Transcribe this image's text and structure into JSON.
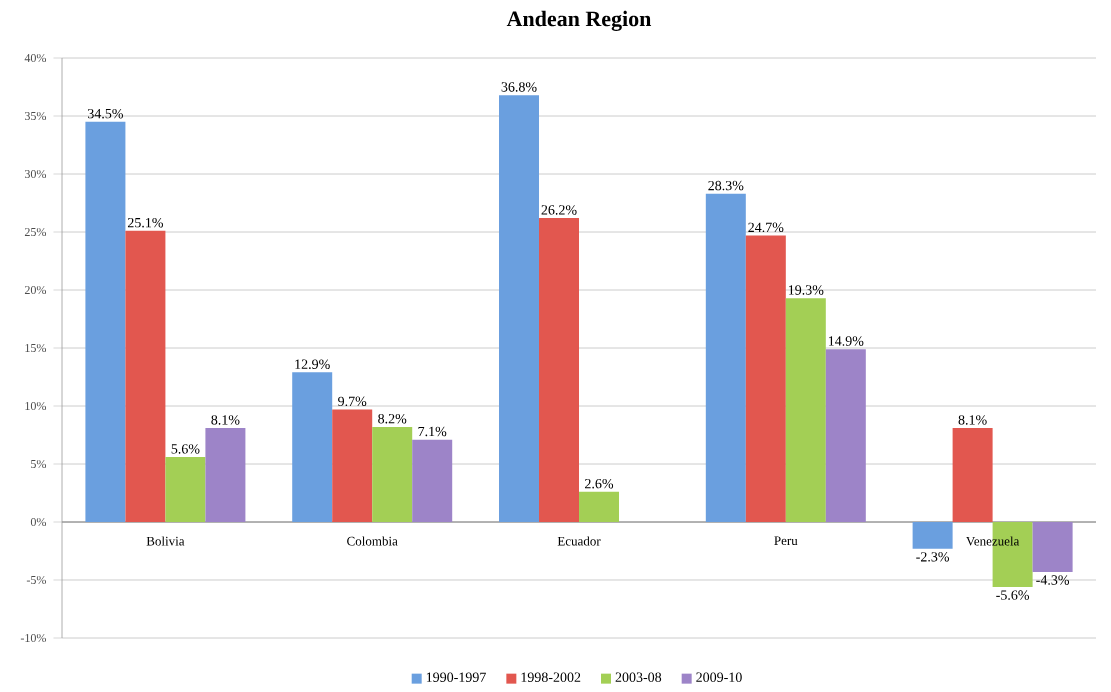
{
  "chart_data": {
    "type": "bar",
    "title": "Andean Region",
    "categories": [
      "Bolivia",
      "Colombia",
      "Ecuador",
      "Peru",
      "Venezuela"
    ],
    "series": [
      {
        "name": "1990-1997",
        "color": "#6a9fdf",
        "values": [
          34.5,
          12.9,
          36.8,
          28.3,
          -2.3
        ],
        "value_labels": [
          "34.5%",
          "12.9%",
          "36.8%",
          "28.3%",
          "-2.3%"
        ]
      },
      {
        "name": "1998-2002",
        "color": "#e2574f",
        "values": [
          25.1,
          9.7,
          26.2,
          24.7,
          8.1
        ],
        "value_labels": [
          "25.1%",
          "9.7%",
          "26.2%",
          "24.7%",
          "8.1%"
        ]
      },
      {
        "name": "2003-08",
        "color": "#a3cf55",
        "values": [
          5.6,
          8.2,
          2.6,
          19.3,
          -5.6
        ],
        "value_labels": [
          "5.6%",
          "8.2%",
          "2.6%",
          "19.3%",
          "-5.6%"
        ]
      },
      {
        "name": "2009-10",
        "color": "#9d84c8",
        "values": [
          8.1,
          7.1,
          null,
          14.9,
          -4.3
        ],
        "value_labels": [
          "8.1%",
          "7.1%",
          null,
          "14.9%",
          "-4.3%"
        ]
      }
    ],
    "ylim": [
      -10,
      40
    ],
    "yticks": [
      {
        "value": -10,
        "label": "-10%"
      },
      {
        "value": -5,
        "label": "-5%"
      },
      {
        "value": 0,
        "label": "0%"
      },
      {
        "value": 5,
        "label": "5%"
      },
      {
        "value": 10,
        "label": "10%"
      },
      {
        "value": 15,
        "label": "15%"
      },
      {
        "value": 20,
        "label": "20%"
      },
      {
        "value": 25,
        "label": "25%"
      },
      {
        "value": 30,
        "label": "30%"
      },
      {
        "value": 35,
        "label": "35%"
      },
      {
        "value": 40,
        "label": "40%"
      }
    ],
    "grid": "y",
    "legend": "bottom"
  }
}
